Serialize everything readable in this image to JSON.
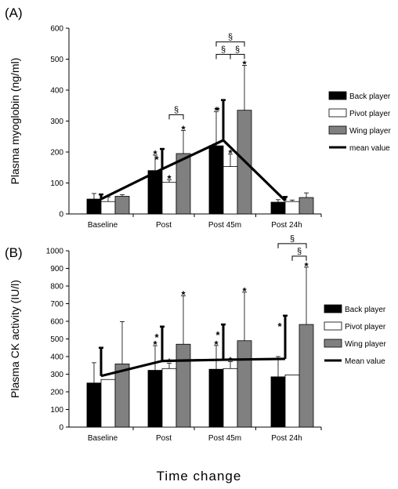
{
  "x_axis_title": "Time   change",
  "chart_data": [
    {
      "type": "bar",
      "panel_label": "(A)",
      "ylabel": "Plasma myoglobin (ng/ml)",
      "ylim": [
        0,
        600
      ],
      "yticks": [
        0,
        100,
        200,
        300,
        400,
        500,
        600
      ],
      "categories": [
        "Baseline",
        "Post",
        "Post 45m",
        "Post 24h"
      ],
      "series": [
        {
          "name": "Back player",
          "color": "#000000",
          "values": [
            48,
            140,
            220,
            38
          ],
          "error": [
            18,
            50,
            110,
            8
          ]
        },
        {
          "name": "Pivot player",
          "color": "#ffffff",
          "values": [
            40,
            102,
            153,
            40
          ],
          "error": [
            15,
            8,
            40,
            5
          ]
        },
        {
          "name": "Wing player",
          "color": "#808080",
          "values": [
            57,
            195,
            335,
            53
          ],
          "error": [
            5,
            75,
            145,
            15
          ]
        }
      ],
      "mean_line": {
        "name": "mean value",
        "values": [
          48,
          145,
          238,
          43
        ],
        "error": [
          15,
          65,
          130,
          12
        ]
      },
      "asterisks": [
        {
          "category": 1,
          "series": 0,
          "label": "*"
        },
        {
          "category": 1,
          "series": 1,
          "label": "*"
        },
        {
          "category": 1,
          "series": 2,
          "label": "*"
        },
        {
          "category": 1,
          "mean": true,
          "label": "*"
        },
        {
          "category": 2,
          "series": 0,
          "label": "*"
        },
        {
          "category": 2,
          "series": 1,
          "label": "*"
        },
        {
          "category": 2,
          "series": 2,
          "label": "*"
        },
        {
          "category": 2,
          "mean": true,
          "label": "*"
        }
      ],
      "brackets": [
        {
          "category": 1,
          "from": 1,
          "to": 2,
          "level": 0,
          "label": "§"
        },
        {
          "category": 2,
          "from": 1,
          "to": 2,
          "level": 0,
          "label": "§"
        },
        {
          "category": 2,
          "from": 0,
          "to": 1,
          "level": 0,
          "label": "§"
        },
        {
          "category": 2,
          "from": 0,
          "to": 2,
          "level": 1,
          "label": "§"
        }
      ]
    },
    {
      "type": "bar",
      "panel_label": "(B)",
      "ylabel": "Plasma CK activity (IU/l)",
      "ylim": [
        0,
        1000
      ],
      "yticks": [
        0,
        100,
        200,
        300,
        400,
        500,
        600,
        700,
        800,
        900,
        1000
      ],
      "categories": [
        "Baseline",
        "Post",
        "Post 45m",
        "Post 24h"
      ],
      "series": [
        {
          "name": "Back player",
          "color": "#000000",
          "values": [
            250,
            322,
            328,
            285
          ],
          "error": [
            115,
            140,
            135,
            115
          ]
        },
        {
          "name": "Pivot player",
          "color": "#ffffff",
          "values": [
            270,
            332,
            332,
            296
          ],
          "error": [
            0,
            30,
            40,
            0
          ]
        },
        {
          "name": "Wing player",
          "color": "#808080",
          "values": [
            358,
            470,
            490,
            582
          ],
          "error": [
            240,
            275,
            275,
            325
          ]
        }
      ],
      "mean_line": {
        "name": "Mean value",
        "values": [
          290,
          375,
          382,
          387
        ],
        "error": [
          160,
          195,
          200,
          245
        ]
      },
      "asterisks": [
        {
          "category": 1,
          "series": 0,
          "label": "*"
        },
        {
          "category": 1,
          "series": 1,
          "label": "*"
        },
        {
          "category": 1,
          "series": 2,
          "label": "*"
        },
        {
          "category": 1,
          "mean": true,
          "label": "*"
        },
        {
          "category": 2,
          "series": 0,
          "label": "*"
        },
        {
          "category": 2,
          "series": 1,
          "label": "*"
        },
        {
          "category": 2,
          "series": 2,
          "label": "*"
        },
        {
          "category": 2,
          "mean": true,
          "label": "*"
        },
        {
          "category": 3,
          "series": 2,
          "label": "*"
        },
        {
          "category": 3,
          "mean": true,
          "label": "*"
        }
      ],
      "brackets": [
        {
          "category": 3,
          "from": 1,
          "to": 2,
          "level": 0,
          "label": "§"
        },
        {
          "category": 3,
          "from": 0,
          "to": 2,
          "level": 1,
          "label": "§"
        }
      ]
    }
  ]
}
